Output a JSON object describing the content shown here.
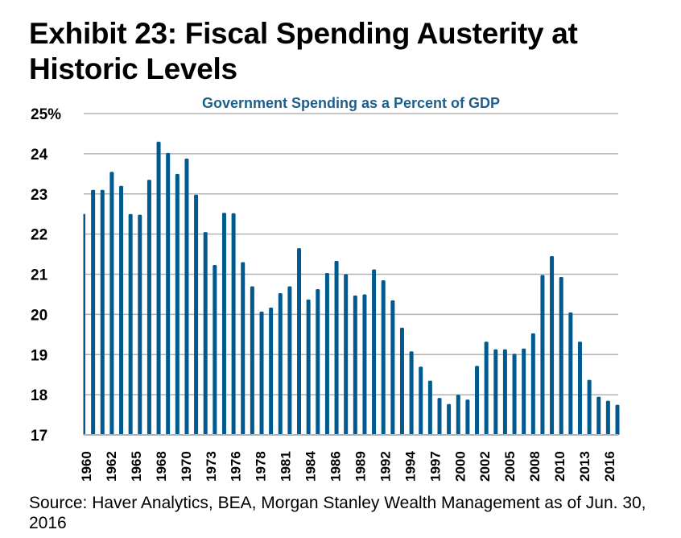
{
  "exhibit_title": "Exhibit 23: Fiscal Spending Austerity at Historic Levels",
  "source_note": "Source: Haver Analytics, BEA, Morgan Stanley Wealth Management as of Jun. 30, 2016",
  "colors": {
    "bar": "#005a8f",
    "chart_title": "#1d5f8c",
    "grid": "#b3b3b3"
  },
  "chart_data": {
    "type": "bar",
    "title": "Government Spending as a Percent of GDP",
    "xlabel": "",
    "ylabel": "",
    "ylim": [
      17,
      25
    ],
    "yticks": [
      "17",
      "18",
      "19",
      "20",
      "21",
      "22",
      "23",
      "24",
      "25%"
    ],
    "grid": true,
    "legend": "none",
    "x_tick_labels": [
      "1960",
      "1962",
      "1965",
      "1968",
      "1970",
      "1973",
      "1976",
      "1978",
      "1981",
      "1984",
      "1986",
      "1989",
      "1992",
      "1994",
      "1997",
      "2000",
      "2002",
      "2005",
      "2008",
      "2010",
      "2013",
      "2016"
    ],
    "series": [
      {
        "name": "Government Spending as a Percent of GDP",
        "values": [
          22.5,
          23.1,
          23.1,
          23.55,
          23.2,
          22.5,
          22.48,
          23.35,
          24.3,
          24.02,
          23.5,
          23.88,
          22.98,
          22.05,
          21.23,
          22.53,
          22.52,
          21.3,
          20.7,
          20.07,
          20.17,
          20.53,
          20.7,
          21.65,
          20.37,
          20.63,
          21.03,
          21.33,
          21.0,
          20.47,
          20.5,
          21.12,
          20.85,
          20.35,
          19.67,
          19.08,
          18.7,
          18.35,
          17.92,
          17.77,
          18.0,
          17.88,
          18.72,
          19.32,
          19.13,
          19.13,
          19.02,
          19.15,
          19.53,
          20.98,
          21.45,
          20.93,
          20.05,
          19.32,
          18.37,
          17.95,
          17.85,
          17.75
        ]
      }
    ]
  }
}
